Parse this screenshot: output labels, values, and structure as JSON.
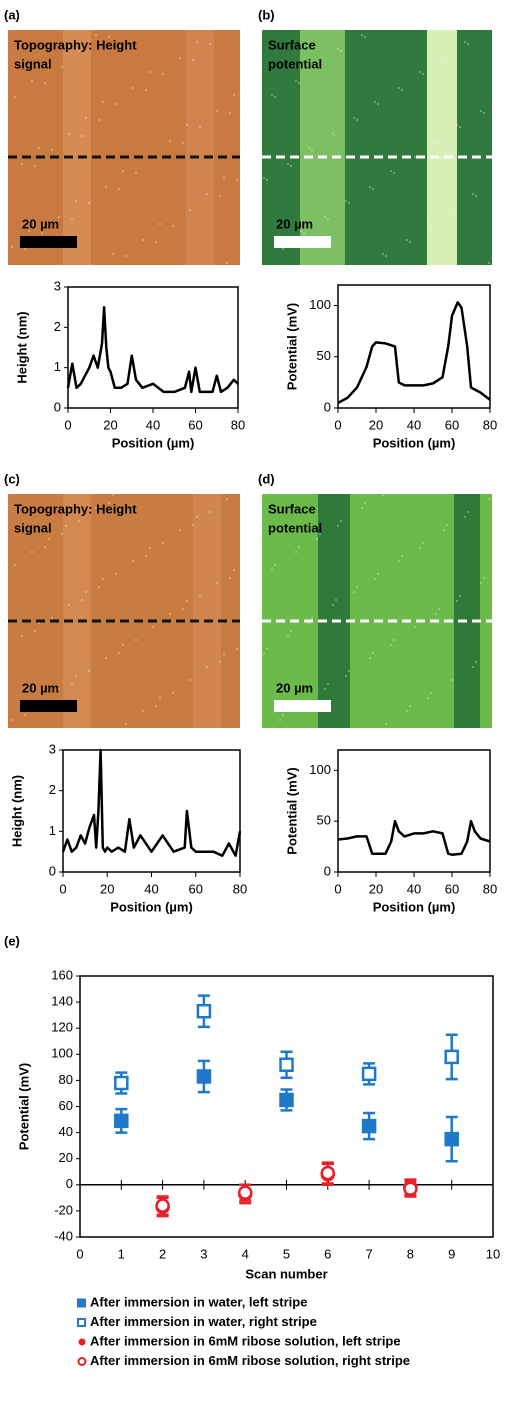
{
  "images": [
    {
      "label": "(a)",
      "caption": [
        "Topography:  Height",
        "signal"
      ],
      "scale": "20 µm"
    },
    {
      "label": "(b)",
      "caption": [
        "Surface",
        "potential"
      ],
      "scale": "20 µm"
    },
    {
      "label": "(c)",
      "caption": [
        "Topography:  Height",
        "signal"
      ],
      "scale": "20 µm"
    },
    {
      "label": "(d)",
      "caption": [
        "Surface",
        "potential"
      ],
      "scale": "20 µm"
    }
  ],
  "chart_data": [
    {
      "type": "line",
      "xlabel": "Position (µm)",
      "ylabel": "Height (nm)",
      "xlim": [
        0,
        80
      ],
      "xticks": [
        0,
        20,
        40,
        60,
        80
      ],
      "ylim": [
        0,
        3
      ],
      "yticks": [
        0,
        1,
        2,
        3
      ],
      "x": [
        0,
        2,
        4,
        6,
        8,
        10,
        12,
        14,
        16,
        17,
        18,
        19,
        20,
        22,
        25,
        28,
        30,
        32,
        35,
        40,
        45,
        50,
        55,
        57,
        58,
        60,
        62,
        65,
        68,
        70,
        72,
        75,
        78,
        80
      ],
      "series": [
        {
          "color": "#000000",
          "values": [
            0.5,
            1.1,
            0.5,
            0.6,
            0.8,
            1.0,
            1.3,
            1.0,
            1.6,
            2.5,
            1.5,
            1.0,
            0.9,
            0.5,
            0.5,
            0.6,
            1.3,
            0.7,
            0.5,
            0.6,
            0.4,
            0.4,
            0.5,
            0.9,
            0.4,
            1.0,
            0.4,
            0.4,
            0.4,
            0.8,
            0.4,
            0.5,
            0.7,
            0.6
          ]
        }
      ]
    },
    {
      "type": "line",
      "xlabel": "Position (µm)",
      "ylabel": "Potential (mV)",
      "xlim": [
        0,
        80
      ],
      "xticks": [
        0,
        20,
        40,
        60,
        80
      ],
      "ylim": [
        0,
        120
      ],
      "yticks": [
        0,
        50,
        100
      ],
      "x": [
        0,
        5,
        10,
        15,
        18,
        20,
        25,
        30,
        32,
        35,
        40,
        45,
        50,
        55,
        58,
        60,
        63,
        65,
        68,
        70,
        75,
        80
      ],
      "series": [
        {
          "color": "#000000",
          "values": [
            5,
            10,
            20,
            40,
            60,
            64,
            63,
            60,
            25,
            22,
            22,
            22,
            24,
            30,
            60,
            90,
            103,
            98,
            60,
            20,
            15,
            8
          ]
        }
      ]
    },
    {
      "type": "line",
      "xlabel": "Position (µm)",
      "ylabel": "Height (nm)",
      "xlim": [
        0,
        80
      ],
      "xticks": [
        0,
        20,
        40,
        60,
        80
      ],
      "ylim": [
        0,
        3
      ],
      "yticks": [
        0,
        1,
        2,
        3
      ],
      "x": [
        0,
        2,
        4,
        6,
        8,
        10,
        12,
        14,
        15,
        16,
        17,
        18,
        19,
        20,
        22,
        25,
        28,
        30,
        32,
        35,
        40,
        45,
        50,
        55,
        56,
        58,
        60,
        63,
        65,
        68,
        72,
        75,
        78,
        80
      ],
      "series": [
        {
          "color": "#000000",
          "values": [
            0.5,
            0.8,
            0.5,
            0.6,
            0.9,
            0.7,
            1.1,
            1.4,
            0.6,
            1.5,
            3.0,
            0.6,
            0.5,
            0.6,
            0.5,
            0.6,
            0.5,
            1.3,
            0.6,
            0.9,
            0.5,
            0.9,
            0.5,
            0.6,
            1.5,
            0.6,
            0.5,
            0.5,
            0.5,
            0.5,
            0.4,
            0.7,
            0.4,
            1.0
          ]
        }
      ]
    },
    {
      "type": "line",
      "xlabel": "Position (µm)",
      "ylabel": "Potential (mV)",
      "xlim": [
        0,
        80
      ],
      "xticks": [
        0,
        20,
        40,
        60,
        80
      ],
      "ylim": [
        0,
        120
      ],
      "yticks": [
        0,
        50,
        100
      ],
      "x": [
        0,
        5,
        10,
        15,
        18,
        20,
        25,
        28,
        30,
        32,
        35,
        40,
        45,
        50,
        55,
        58,
        60,
        65,
        68,
        70,
        72,
        75,
        80
      ],
      "series": [
        {
          "color": "#000000",
          "values": [
            32,
            33,
            35,
            35,
            18,
            18,
            18,
            30,
            50,
            40,
            35,
            38,
            38,
            40,
            38,
            18,
            17,
            18,
            30,
            50,
            40,
            33,
            30
          ]
        }
      ]
    },
    {
      "type": "scatter",
      "label": "(e)",
      "xlabel": "Scan number",
      "ylabel": "Potential (mV)",
      "xlim": [
        0,
        10
      ],
      "xticks": [
        0,
        1,
        2,
        3,
        4,
        5,
        6,
        7,
        8,
        9,
        10
      ],
      "ylim": [
        -40,
        160
      ],
      "yticks": [
        -40,
        -20,
        0,
        20,
        40,
        60,
        80,
        100,
        120,
        140,
        160
      ],
      "series": [
        {
          "name": "After immersion in water, left stripe",
          "color": "#1f78c8",
          "marker": "square",
          "x": [
            1,
            3,
            5,
            7,
            9
          ],
          "values": [
            49,
            83,
            65,
            45,
            35
          ],
          "errors": [
            9,
            12,
            8,
            10,
            17
          ]
        },
        {
          "name": "After immersion in water, right stripe",
          "color": "#1f78c8",
          "marker": "square-open",
          "x": [
            1,
            3,
            5,
            7,
            9
          ],
          "values": [
            78,
            133,
            92,
            85,
            98
          ],
          "errors": [
            8,
            12,
            10,
            8,
            17
          ]
        },
        {
          "name": "After immersion in 6mM ribose solution, left stripe",
          "color": "#e8202a",
          "marker": "circle",
          "x": [
            2,
            4,
            6,
            8
          ],
          "values": [
            -17,
            -7,
            8,
            -2
          ],
          "errors": [
            7,
            7,
            8,
            6
          ]
        },
        {
          "name": "After immersion in 6mM ribose solution, right stripe",
          "color": "#e8202a",
          "marker": "circle-open",
          "x": [
            2,
            4,
            6,
            8
          ],
          "values": [
            -16,
            -6,
            9,
            -3
          ],
          "errors": [
            7,
            6,
            8,
            6
          ]
        }
      ]
    }
  ]
}
